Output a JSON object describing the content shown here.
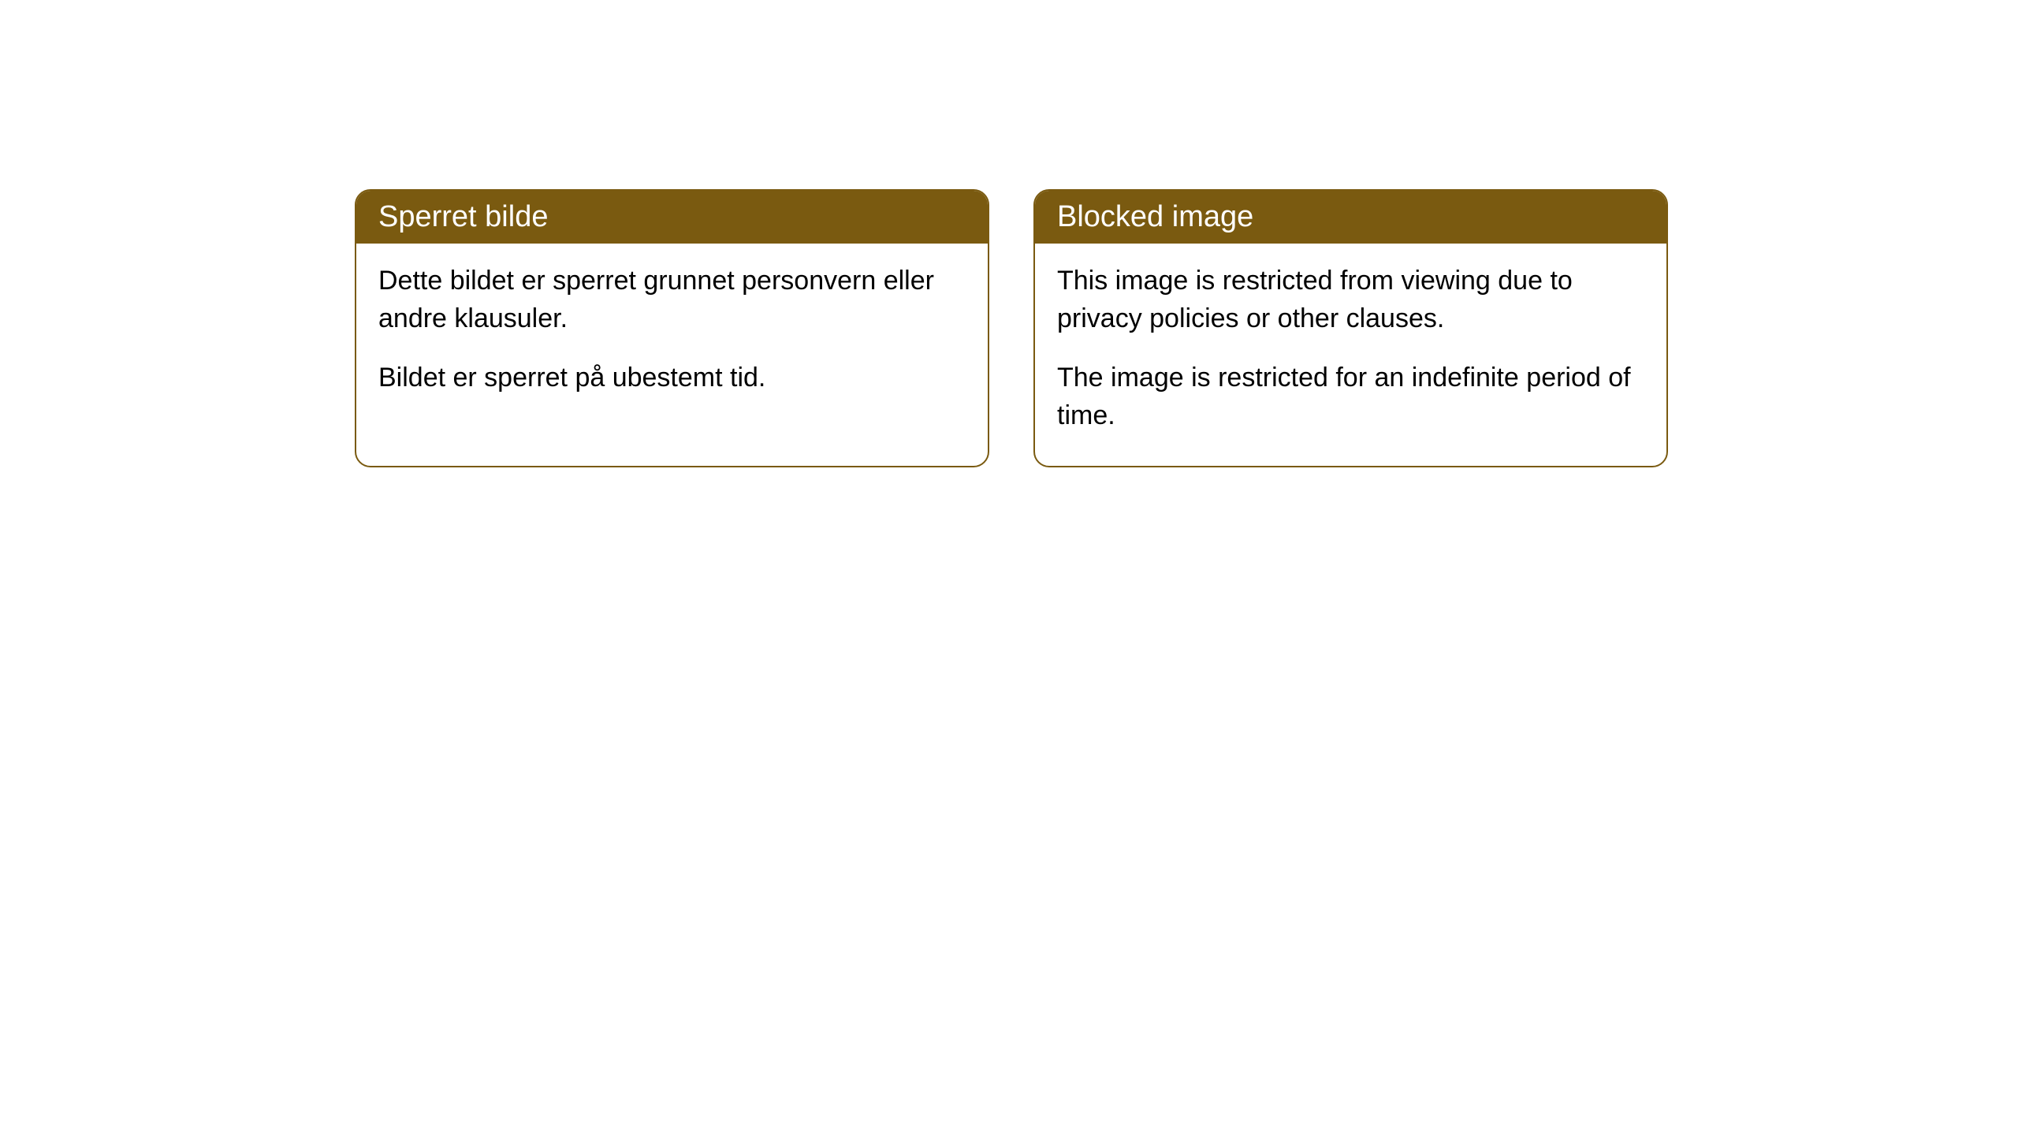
{
  "cards": [
    {
      "title": "Sperret bilde",
      "paragraph1": "Dette bildet er sperret grunnet personvern eller andre klausuler.",
      "paragraph2": "Bildet er sperret på ubestemt tid."
    },
    {
      "title": "Blocked image",
      "paragraph1": "This image is restricted from viewing due to privacy policies or other clauses.",
      "paragraph2": "The image is restricted for an indefinite period of time."
    }
  ],
  "styling": {
    "header_bg_color": "#7a5a10",
    "header_text_color": "#ffffff",
    "border_color": "#7a5a10",
    "body_bg_color": "#ffffff",
    "body_text_color": "#000000",
    "border_radius": 20,
    "header_fontsize": 38,
    "body_fontsize": 34
  }
}
